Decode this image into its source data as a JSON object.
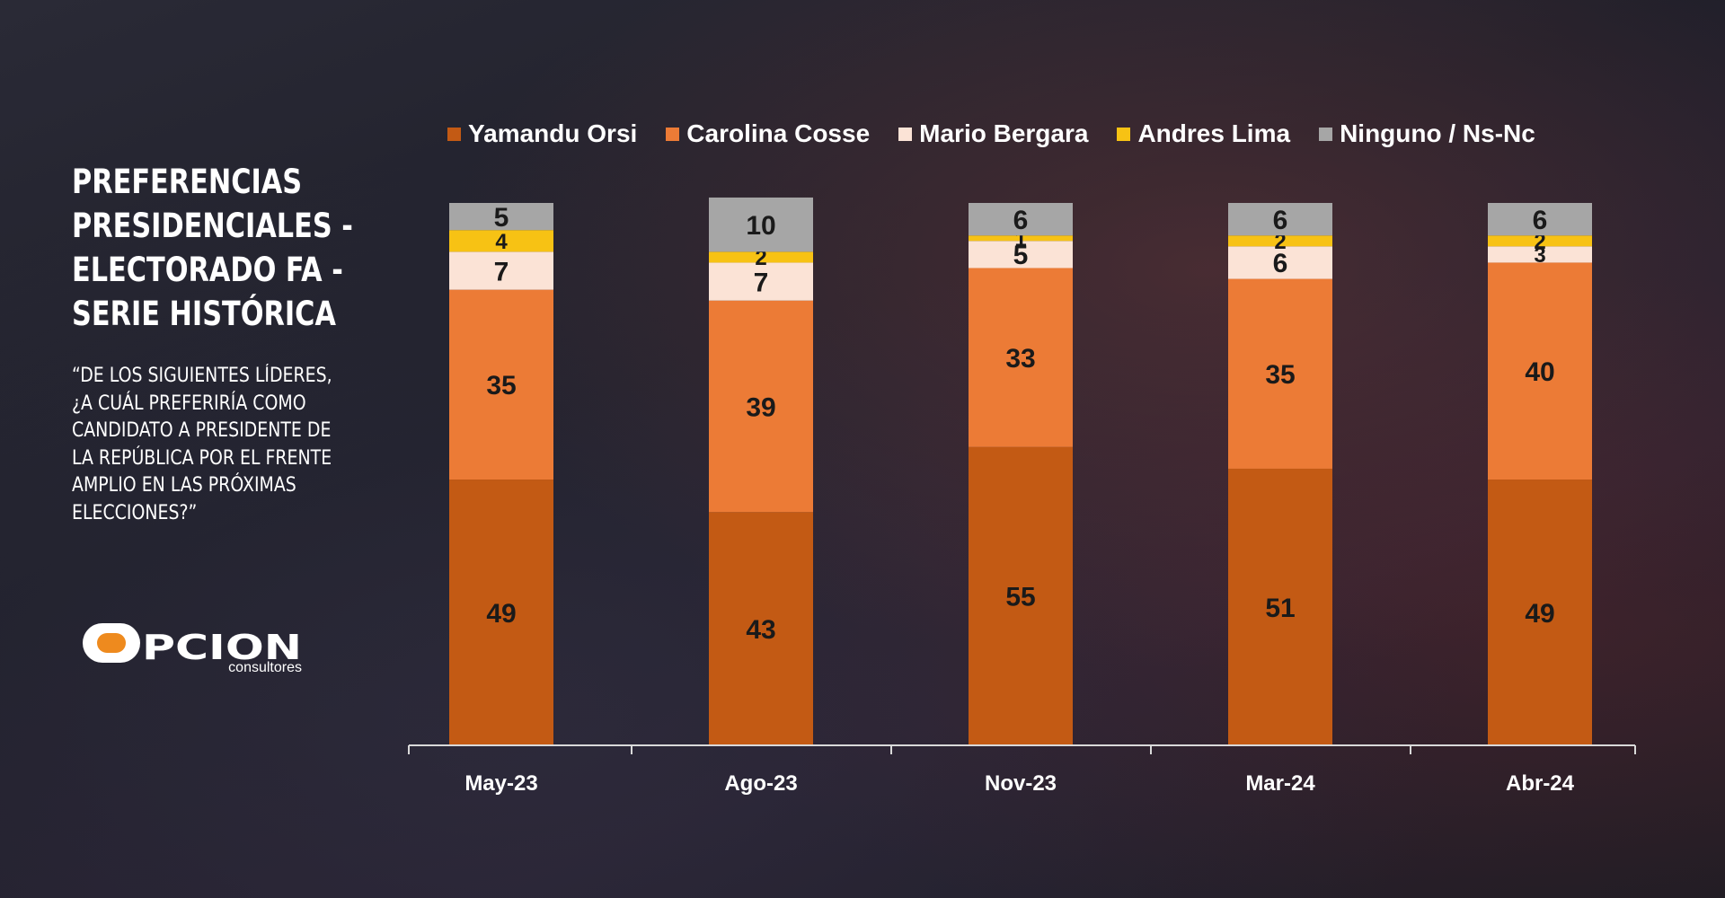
{
  "title_lines": [
    "PREFERENCIAS",
    "PRESIDENCIALES -",
    "ELECTORADO FA -",
    "SERIE HISTÓRICA"
  ],
  "question_lines": [
    "“DE LOS SIGUIENTES LÍDERES,",
    "¿A CUÁL PREFERIRÍA COMO",
    "CANDIDATO A PRESIDENTE DE",
    "LA REPÚBLICA POR EL FRENTE",
    "AMPLIO EN LAS PRÓXIMAS",
    "ELECCIONES?”"
  ],
  "logo": {
    "name": "OPCION",
    "tagline": "consultores"
  },
  "colors": {
    "Yamandu Orsi": "#c35a14",
    "Carolina Cosse": "#ec7b36",
    "Mario Bergara": "#fbe3d6",
    "Andres Lima": "#f7c214",
    "Ninguno / Ns-Nc": "#a6a6a6"
  },
  "chart_data": {
    "type": "bar",
    "stacked": true,
    "categories": [
      "May-23",
      "Ago-23",
      "Nov-23",
      "Mar-24",
      "Abr-24"
    ],
    "series": [
      {
        "name": "Yamandu Orsi",
        "values": [
          49,
          43,
          55,
          51,
          49
        ]
      },
      {
        "name": "Carolina Cosse",
        "values": [
          35,
          39,
          33,
          35,
          40
        ]
      },
      {
        "name": "Mario Bergara",
        "values": [
          7,
          7,
          5,
          6,
          3
        ]
      },
      {
        "name": "Andres Lima",
        "values": [
          4,
          2,
          1,
          2,
          2
        ]
      },
      {
        "name": "Ninguno / Ns-Nc",
        "values": [
          5,
          10,
          6,
          6,
          6
        ]
      }
    ],
    "ylim": [
      0,
      100
    ],
    "legend_position": "top",
    "grid": false
  }
}
